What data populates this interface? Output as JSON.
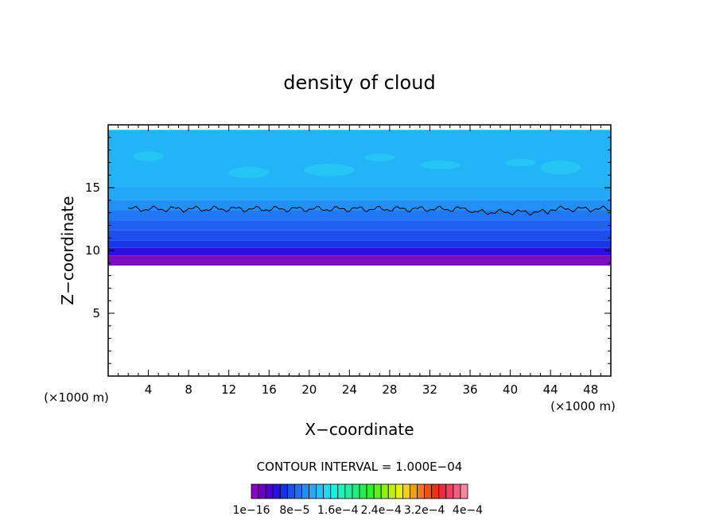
{
  "chart_data": {
    "type": "heatmap",
    "title": "density of cloud",
    "xlabel": "X−coordinate",
    "ylabel": "Z−coordinate",
    "x_unit": "(×1000 m)",
    "z_unit": "(×1000 m)",
    "xlim": [
      0,
      50
    ],
    "ylim": [
      0,
      20
    ],
    "x_ticks": [
      4,
      8,
      12,
      16,
      20,
      24,
      28,
      32,
      36,
      40,
      44,
      48
    ],
    "y_ticks": [
      5,
      10,
      15
    ],
    "contour_interval_label": "CONTOUR INTERVAL = 1.000E−04",
    "colorbar": {
      "tick_labels": [
        "1e−16",
        "8e−5",
        "1.6e−4",
        "2.4e−4",
        "3.2e−4",
        "4e−4"
      ],
      "colors": [
        "#8a00c8",
        "#6a00c8",
        "#4a00d6",
        "#2a10e0",
        "#1630e8",
        "#1c50f0",
        "#2070f4",
        "#2490f6",
        "#22aaf6",
        "#20c4f4",
        "#20dcf0",
        "#1ef0e0",
        "#1ef0c0",
        "#1ef0a0",
        "#1ef080",
        "#20f050",
        "#30f028",
        "#60f018",
        "#90f010",
        "#c0f010",
        "#e6f010",
        "#f0d010",
        "#f0a010",
        "#f07810",
        "#f05010",
        "#f03010",
        "#f02840",
        "#f04060",
        "#f06080",
        "#f08aa0"
      ]
    },
    "field": {
      "cloud_base_km": 9.0,
      "cloud_top_km": 19.5,
      "contour_line_level_km": 13.3,
      "bands": [
        {
          "z0": 8.8,
          "z1": 9.6,
          "color": "#7a10c0"
        },
        {
          "z0": 9.6,
          "z1": 10.2,
          "color": "#2a10e0"
        },
        {
          "z0": 10.2,
          "z1": 10.8,
          "color": "#1638e8"
        },
        {
          "z0": 10.8,
          "z1": 11.6,
          "color": "#1c4ef0"
        },
        {
          "z0": 11.6,
          "z1": 12.4,
          "color": "#2060f2"
        },
        {
          "z0": 12.4,
          "z1": 13.2,
          "color": "#2078f4"
        },
        {
          "z0": 13.2,
          "z1": 14.0,
          "color": "#2290f6"
        },
        {
          "z0": 14.0,
          "z1": 15.0,
          "color": "#22a8f6"
        },
        {
          "z0": 15.0,
          "z1": 19.6,
          "color": "#22b4f6"
        }
      ]
    }
  }
}
